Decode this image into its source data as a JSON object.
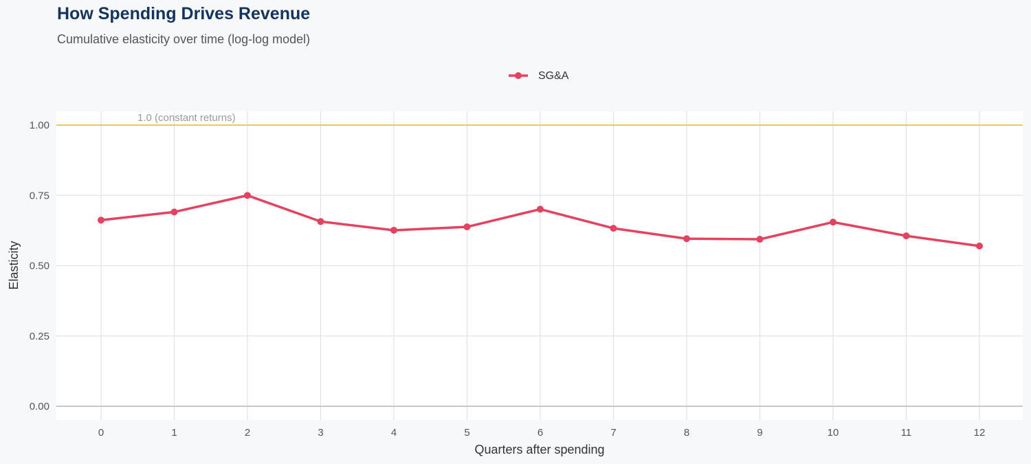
{
  "chart_data": {
    "type": "line",
    "title": "How Spending Drives Revenue",
    "subtitle": "Cumulative elasticity over time (log-log model)",
    "xlabel": "Quarters after spending",
    "ylabel": "Elasticity",
    "x": [
      0,
      1,
      2,
      3,
      4,
      5,
      6,
      7,
      8,
      9,
      10,
      11,
      12
    ],
    "series": [
      {
        "name": "SG&A",
        "color": "#e5425f",
        "values": [
          0.662,
          0.691,
          0.75,
          0.657,
          0.626,
          0.638,
          0.701,
          0.633,
          0.596,
          0.594,
          0.655,
          0.606,
          0.57
        ]
      }
    ],
    "xlim": [
      -0.6,
      12.6
    ],
    "ylim": [
      -0.05,
      1.05
    ],
    "yticks": [
      0,
      0.25,
      0.5,
      0.75,
      1.0
    ],
    "ytick_labels": [
      "0.00",
      "0.25",
      "0.50",
      "0.75",
      "1.00"
    ],
    "reference_line": {
      "y": 1.0,
      "label": "1.0 (constant returns)",
      "color": "#f2c65b"
    },
    "legend_position": "top-center",
    "grid": true
  }
}
